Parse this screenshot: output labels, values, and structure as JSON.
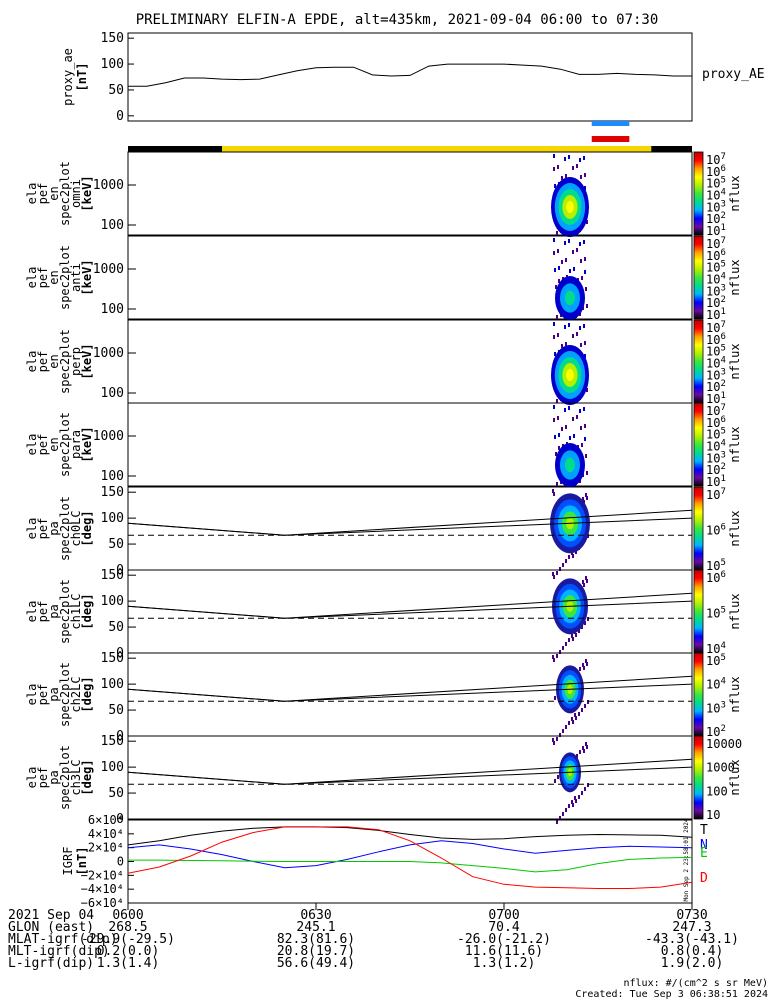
{
  "title": "PRELIMINARY ELFIN-A EPDE, alt=435km, 2021-09-04 06:00 to 07:30",
  "colors": {
    "axis": "#000000",
    "sun_bar": "#f7d600",
    "shadow_bar": "#000000",
    "sci_blue": "#1a8cff",
    "sci_red": "#e00000",
    "grf_T": "#000000",
    "grf_N": "#0000ff",
    "grf_E": "#00c800",
    "grf_D": "#ff0000"
  },
  "top_panel": {
    "ylabel": [
      "proxy_ae",
      "[nT]"
    ],
    "yticks": [
      "150",
      "100",
      "50",
      "0"
    ],
    "ylim": [
      -10,
      160
    ],
    "label": "proxy_AE",
    "series": {
      "t": [
        0,
        3,
        6,
        9,
        12,
        15,
        18,
        21,
        24,
        27,
        30,
        33,
        36,
        39,
        42,
        45,
        48,
        51,
        54,
        57,
        60,
        63,
        66,
        69,
        72,
        75,
        78,
        81,
        84,
        87,
        90
      ],
      "v": [
        57,
        57,
        64,
        73,
        73,
        71,
        70,
        71,
        79,
        87,
        93,
        94,
        94,
        79,
        77,
        78,
        96,
        100,
        100,
        100,
        100,
        98,
        96,
        90,
        80,
        80,
        82,
        80,
        79,
        77,
        77
      ]
    }
  },
  "spectro_panels": [
    {
      "label": [
        "ela",
        "pef",
        "en",
        "spec2plot",
        "omni",
        "[keV]"
      ],
      "yticks": [
        "1000",
        "100"
      ],
      "cb_ticks": [
        "10",
        "10",
        "10",
        "10",
        "10",
        "10",
        "10"
      ],
      "cb_exps": [
        "7",
        "6",
        "5",
        "4",
        "3",
        "2",
        "1"
      ],
      "cb_label": "nflux"
    },
    {
      "label": [
        "ela",
        "pef",
        "en",
        "spec2plot",
        "anti",
        "[keV]"
      ],
      "yticks": [
        "1000",
        "100"
      ],
      "cb_ticks": [
        "10",
        "10",
        "10",
        "10",
        "10",
        "10",
        "10"
      ],
      "cb_exps": [
        "7",
        "6",
        "5",
        "4",
        "3",
        "2",
        "1"
      ],
      "cb_label": "nflux"
    },
    {
      "label": [
        "ela",
        "pef",
        "en",
        "spec2plot",
        "perp",
        "[keV]"
      ],
      "yticks": [
        "1000",
        "100"
      ],
      "cb_ticks": [
        "10",
        "10",
        "10",
        "10",
        "10",
        "10",
        "10"
      ],
      "cb_exps": [
        "7",
        "6",
        "5",
        "4",
        "3",
        "2",
        "1"
      ],
      "cb_label": "nflux"
    },
    {
      "label": [
        "ela",
        "pef",
        "en",
        "spec2plot",
        "para",
        "[keV]"
      ],
      "yticks": [
        "1000",
        "100"
      ],
      "cb_ticks": [
        "10",
        "10",
        "10",
        "10",
        "10",
        "10",
        "10"
      ],
      "cb_exps": [
        "7",
        "6",
        "5",
        "4",
        "3",
        "2",
        "1"
      ],
      "cb_label": "nflux"
    }
  ],
  "pa_panels": [
    {
      "label": [
        "ela",
        "pef",
        "pa",
        "spec2plot",
        "ch0LC",
        "[deg]"
      ],
      "yticks": [
        "150",
        "100",
        "50",
        "0"
      ],
      "cb_ticks": [
        "10",
        "10",
        "10"
      ],
      "cb_exps": [
        "7",
        "6",
        "5"
      ],
      "cb_label": "nflux"
    },
    {
      "label": [
        "ela",
        "pef",
        "pa",
        "spec2plot",
        "ch1LC",
        "[deg]"
      ],
      "yticks": [
        "150",
        "100",
        "50",
        "0"
      ],
      "cb_ticks": [
        "10",
        "10",
        "10"
      ],
      "cb_exps": [
        "6",
        "5",
        "4"
      ],
      "cb_label": "nflux"
    },
    {
      "label": [
        "ela",
        "pef",
        "pa",
        "spec2plot",
        "ch2LC",
        "[deg]"
      ],
      "yticks": [
        "150",
        "100",
        "50",
        "0"
      ],
      "cb_ticks": [
        "10",
        "10",
        "10",
        "10"
      ],
      "cb_exps": [
        "5",
        "4",
        "3",
        "2"
      ],
      "cb_label": "nflux"
    },
    {
      "label": [
        "ela",
        "pef",
        "pa",
        "spec2plot",
        "ch3LC",
        "[deg]"
      ],
      "yticks": [
        "150",
        "100",
        "50",
        "0"
      ],
      "cb_ticks": [
        "10000",
        "1000",
        "100",
        "10"
      ],
      "cb_exps": [
        "",
        "",
        "",
        ""
      ],
      "cb_label": "nflux"
    }
  ],
  "pa_lines": {
    "t": [
      0,
      25,
      90
    ],
    "solid_low": [
      90,
      67,
      100
    ],
    "solid_high": [
      90,
      67,
      115
    ],
    "dashed": [
      67,
      67,
      67
    ],
    "ylim": [
      0,
      160
    ]
  },
  "grf_panel": {
    "ylabel": [
      "IGRF",
      "[nT]"
    ],
    "yticks": [
      "6×10⁴",
      "4×10⁴",
      "2×10⁴",
      "0",
      "−2×10⁴",
      "−4×10⁴",
      "−6×10⁴"
    ],
    "legend": [
      "T",
      "N",
      "E",
      "D"
    ],
    "ylim": [
      -60000,
      60000
    ],
    "t": [
      0,
      5,
      10,
      15,
      20,
      25,
      30,
      35,
      40,
      45,
      50,
      55,
      60,
      65,
      70,
      75,
      80,
      85,
      90
    ],
    "T": [
      24000,
      30000,
      38000,
      44000,
      48000,
      50000,
      50000,
      49000,
      45000,
      39000,
      34000,
      32000,
      33000,
      36000,
      38000,
      39000,
      38500,
      38000,
      35000
    ],
    "N": [
      20000,
      24000,
      18000,
      10000,
      0,
      -9000,
      -6000,
      3000,
      14000,
      24000,
      30000,
      26000,
      18000,
      12000,
      16000,
      20000,
      22000,
      21000,
      20000
    ],
    "E": [
      2000,
      2000,
      1500,
      1000,
      500,
      0,
      0,
      0,
      0,
      0,
      -2000,
      -6000,
      -10000,
      -15000,
      -12000,
      -3000,
      3000,
      5000,
      6000
    ],
    "D": [
      -17000,
      -8000,
      8000,
      28000,
      42000,
      50000,
      50000,
      50000,
      46000,
      30000,
      5000,
      -22000,
      -33000,
      -37000,
      -38000,
      -39000,
      -39000,
      -37000,
      -30000
    ]
  },
  "footer": {
    "rows": [
      {
        "label": "2021 Sep 04",
        "values": [
          "0600",
          "0630",
          "0700",
          "0730"
        ]
      },
      {
        "label": "GLON (east)",
        "values": [
          "268.5",
          "245.1",
          "70.4",
          "247.3"
        ]
      },
      {
        "label": "MLAT-igrf(dip)",
        "values": [
          "-29.9(-29.5)",
          "82.3(81.6)",
          "-26.0(-21.2)",
          "-43.3(-43.1)"
        ]
      },
      {
        "label": "MLT-igrf(dip)",
        "values": [
          "0.2(0.0)",
          "20.8(19.7)",
          "11.6(11.6)",
          "0.8(0.4)"
        ]
      },
      {
        "label": "L-igrf(dip)",
        "values": [
          "1.3(1.4)",
          "56.6(49.4)",
          "1.3(1.2)",
          "1.9(2.0)"
        ]
      }
    ],
    "units": "nflux: #/(cm^2 s sr MeV)",
    "created": "Created: Tue Sep  3 06:38:51 2024",
    "side_stamp": "Mon Sep  2 23:58:01 2024"
  }
}
